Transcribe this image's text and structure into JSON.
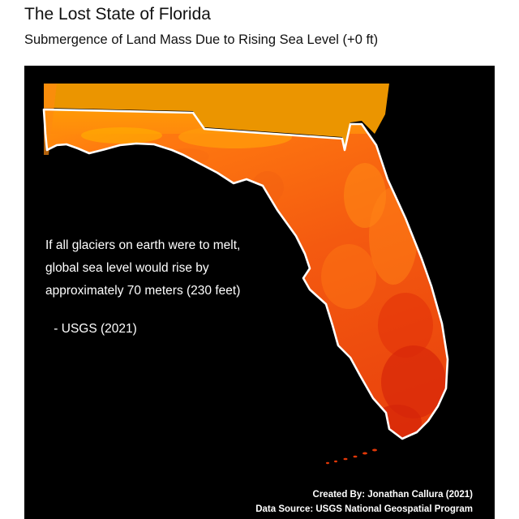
{
  "header": {
    "title": "The Lost State of Florida",
    "subtitle": "Submergence of Land Mass Due to Rising Sea Level (+0 ft)"
  },
  "map": {
    "region": "Florida",
    "background_color": "#000000",
    "border_color": "#ffffff",
    "elevation_colors": {
      "high": "#ffa500",
      "mid": "#ff7a10",
      "low": "#f04a10",
      "lowest": "#dd2a08"
    }
  },
  "annotation": {
    "quote_lines": [
      "If all glaciers on earth were to melt,",
      "global sea level would rise by",
      "approximately 70 meters (230 feet)"
    ],
    "source": " - USGS (2021)"
  },
  "credits": {
    "created_by": "Created By: Jonathan Callura (2021)",
    "data_source": "Data Source: USGS National Geospatial Program"
  }
}
